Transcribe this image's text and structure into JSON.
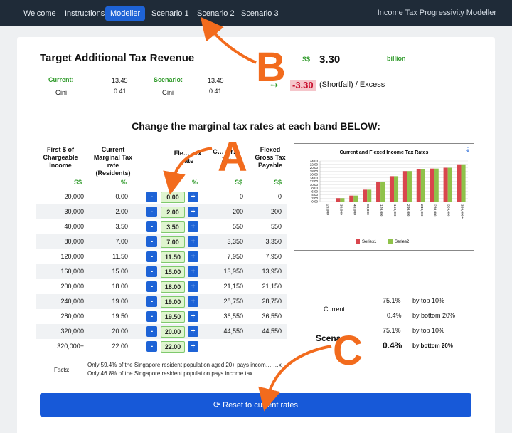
{
  "nav": {
    "items": [
      "Welcome",
      "Instructions",
      "Modeller",
      "Scenario 1",
      "Scenario 2",
      "Scenario 3"
    ],
    "active": "Modeller",
    "app_title": "Income Tax Progressivity Modeller"
  },
  "target": {
    "title": "Target Additional Tax Revenue",
    "currency": "S$",
    "target_value": "3.30",
    "unit": "billion",
    "current_label": "Current:",
    "current_value": "13.45",
    "current_gini_label": "Gini",
    "current_gini": "0.41",
    "scenario_label": "Scenario:",
    "scenario_value": "13.45",
    "scenario_gini_label": "Gini",
    "scenario_gini": "0.41",
    "shortfall_value": "-3.30",
    "shortfall_label": "(Shortfall) / Excess",
    "arrow_icon": "right-arrow-icon"
  },
  "table": {
    "heading": "Change the marginal tax rates at each band BELOW:",
    "headers": {
      "first_dollar": "First $ of Chargeable Income",
      "current_rate": "Current Marginal Tax rate (Residents)",
      "flexed_rate_visible": "Fle… …x rate",
      "current_gross_visible": "C… Gr… Zw",
      "flexed_gross": "Flexed Gross Tax Payable"
    },
    "units": {
      "first_dollar": "S$",
      "current_rate": "%",
      "flexed_rate": "%",
      "current_gross": "S$",
      "flexed_gross": "S$"
    },
    "minus_label": "-",
    "plus_label": "+",
    "rows": [
      {
        "band": "20,000",
        "current": "0.00",
        "flexed": "0.00",
        "gross": "0",
        "flexed_gross": "0"
      },
      {
        "band": "30,000",
        "current": "2.00",
        "flexed": "2.00",
        "gross": "200",
        "flexed_gross": "200"
      },
      {
        "band": "40,000",
        "current": "3.50",
        "flexed": "3.50",
        "gross": "550",
        "flexed_gross": "550"
      },
      {
        "band": "80,000",
        "current": "7.00",
        "flexed": "7.00",
        "gross": "3,350",
        "flexed_gross": "3,350"
      },
      {
        "band": "120,000",
        "current": "11.50",
        "flexed": "11.50",
        "gross": "7,950",
        "flexed_gross": "7,950"
      },
      {
        "band": "160,000",
        "current": "15.00",
        "flexed": "15.00",
        "gross": "13,950",
        "flexed_gross": "13,950"
      },
      {
        "band": "200,000",
        "current": "18.00",
        "flexed": "18.00",
        "gross": "21,150",
        "flexed_gross": "21,150"
      },
      {
        "band": "240,000",
        "current": "19.00",
        "flexed": "19.00",
        "gross": "28,750",
        "flexed_gross": "28,750"
      },
      {
        "band": "280,000",
        "current": "19.50",
        "flexed": "19.50",
        "gross": "36,550",
        "flexed_gross": "36,550"
      },
      {
        "band": "320,000",
        "current": "20.00",
        "flexed": "20.00",
        "gross": "44,550",
        "flexed_gross": "44,550"
      },
      {
        "band": "320,000+",
        "current": "22.00",
        "flexed": "22.00",
        "gross": "",
        "flexed_gross": ""
      }
    ]
  },
  "stats": {
    "current_label": "Current:",
    "scenario_label_visible": "Scena",
    "rows": [
      {
        "value": "75.1%",
        "desc": "by top 10%"
      },
      {
        "value": "0.4%",
        "desc": "by bottom 20%"
      },
      {
        "value": "75.1%",
        "desc": "by top 10%"
      },
      {
        "value": "0.4%",
        "desc": "by bottom 20%"
      }
    ]
  },
  "facts": {
    "label": "Facts:",
    "line1": "Only 59.4% of the Singapore resident population aged 20+ pays incom… …x",
    "line2": "Only 46.8% of the Singapore resident population pays income tax"
  },
  "reset": {
    "label": "Reset to current rates",
    "icon": "refresh-icon"
  },
  "annotations": {
    "a": "A",
    "b": "B",
    "c": "C",
    "color": "#f26b1d"
  },
  "chart_data": {
    "type": "bar",
    "title": "Current and Flexed Income Tax Rates",
    "categories": [
      "20,000",
      "30,000",
      "40,000",
      "80,000",
      "120,000",
      "160,000",
      "200,000",
      "240,000",
      "280,000",
      "320,000",
      "320,000+"
    ],
    "series": [
      {
        "name": "Series1",
        "color": "#d9464d",
        "values": [
          0,
          2,
          3.5,
          7,
          11.5,
          15,
          18,
          19,
          19.5,
          20,
          22
        ]
      },
      {
        "name": "Series2",
        "color": "#8fc24a",
        "values": [
          0,
          2,
          3.5,
          7,
          11.5,
          15,
          18,
          19,
          19.5,
          20,
          22
        ]
      }
    ],
    "ylim": [
      0,
      24
    ],
    "yticks": [
      "0.00",
      "2.00",
      "4.00",
      "6.00",
      "8.00",
      "10.00",
      "12.00",
      "14.00",
      "16.00",
      "18.00",
      "20.00",
      "22.00",
      "24.00"
    ],
    "grid": true,
    "legend": "bottom",
    "menu_icon": "download-icon"
  }
}
